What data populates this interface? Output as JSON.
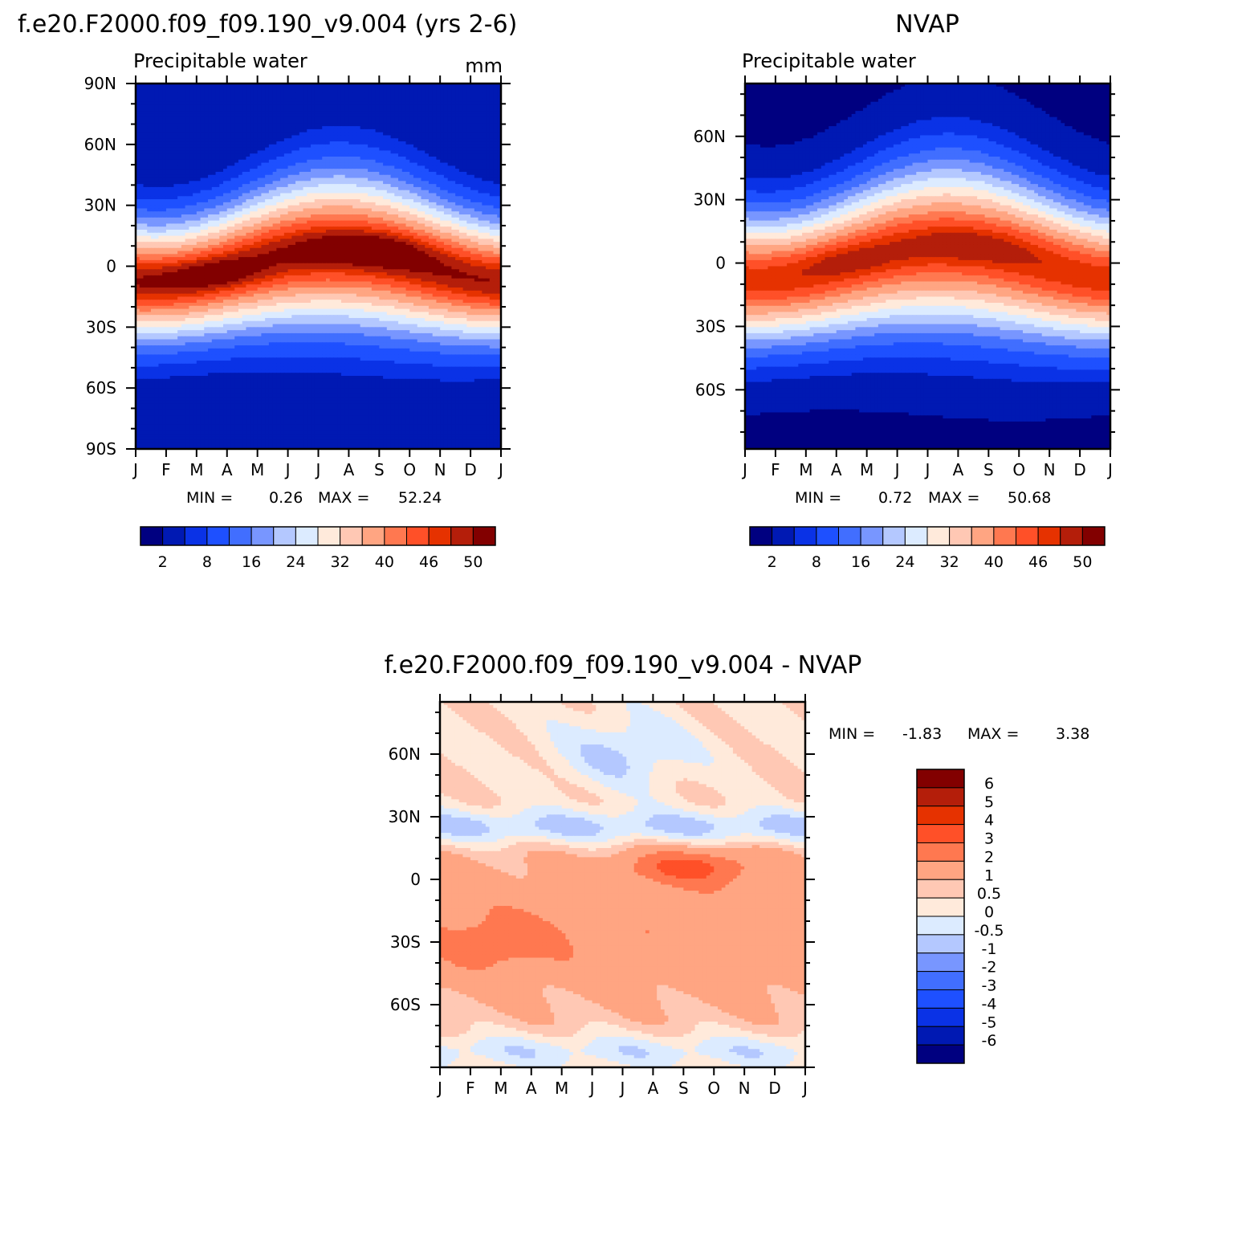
{
  "titles": {
    "left": "f.e20.F2000.f09_f09.190_v9.004 (yrs 2-6)",
    "right": "NVAP",
    "diff": "f.e20.F2000.f09_f09.190_v9.004 - NVAP"
  },
  "colors": {
    "scale16": [
      "#000080",
      "#0019b3",
      "#0a32e6",
      "#1e50ff",
      "#416eff",
      "#7896ff",
      "#b4c8ff",
      "#dcebff",
      "#ffeadb",
      "#ffc8b4",
      "#ffa582",
      "#ff7850",
      "#ff5028",
      "#e63200",
      "#b41e0a",
      "#820000"
    ],
    "diff_scale14": [
      "#000080",
      "#0019b3",
      "#0a32e6",
      "#1e50ff",
      "#416eff",
      "#7896ff",
      "#b4c8ff",
      "#dcebff",
      "#ffeadb",
      "#ffc8b4",
      "#ffa582",
      "#ff7850",
      "#ff5028",
      "#e63200",
      "#b41e0a",
      "#820000"
    ]
  },
  "chart_data": [
    {
      "type": "heatmap",
      "panel": "left",
      "title": "f.e20.F2000.f09_f09.190_v9.004 (yrs 2-6)",
      "subtitle_left": "Precipitable water",
      "subtitle_right": "mm",
      "min_label": "MIN =",
      "min_value": "0.26",
      "max_label": "MAX =",
      "max_value": "52.24",
      "x_ticks": [
        "J",
        "F",
        "M",
        "A",
        "M",
        "J",
        "J",
        "A",
        "S",
        "O",
        "N",
        "D",
        "J"
      ],
      "y_ticks": [
        "90N",
        "60N",
        "30N",
        "0",
        "30S",
        "60S",
        "90S"
      ],
      "colorbar_labels": [
        "2",
        "8",
        "16",
        "24",
        "32",
        "40",
        "46",
        "50"
      ],
      "z_field": "zonal-mean precipitable water (mm), month vs latitude; max ~52 in N tropics Jul-Sep"
    },
    {
      "type": "heatmap",
      "panel": "right",
      "title": "NVAP",
      "subtitle_left": "Precipitable water",
      "min_label": "MIN =",
      "min_value": "0.72",
      "max_label": "MAX =",
      "max_value": "50.68",
      "x_ticks": [
        "J",
        "F",
        "M",
        "A",
        "M",
        "J",
        "J",
        "A",
        "S",
        "O",
        "N",
        "D",
        "J"
      ],
      "y_ticks": [
        "60N",
        "30N",
        "0",
        "30S",
        "60S"
      ],
      "colorbar_labels": [
        "2",
        "8",
        "16",
        "24",
        "32",
        "40",
        "46",
        "50"
      ]
    },
    {
      "type": "heatmap",
      "panel": "diff",
      "title": "f.e20.F2000.f09_f09.190_v9.004 - NVAP",
      "min_label": "MIN =",
      "min_value": "-1.83",
      "max_label": "MAX =",
      "max_value": "3.38",
      "x_ticks": [
        "J",
        "F",
        "M",
        "A",
        "M",
        "J",
        "J",
        "A",
        "S",
        "O",
        "N",
        "D",
        "J"
      ],
      "y_ticks": [
        "60N",
        "30N",
        "0",
        "30S",
        "60S"
      ],
      "colorbar_labels": [
        "6",
        "5",
        "4",
        "3",
        "2",
        "1",
        "0.5",
        "0",
        "-0.5",
        "-1",
        "-2",
        "-3",
        "-4",
        "-5",
        "-6"
      ]
    }
  ]
}
